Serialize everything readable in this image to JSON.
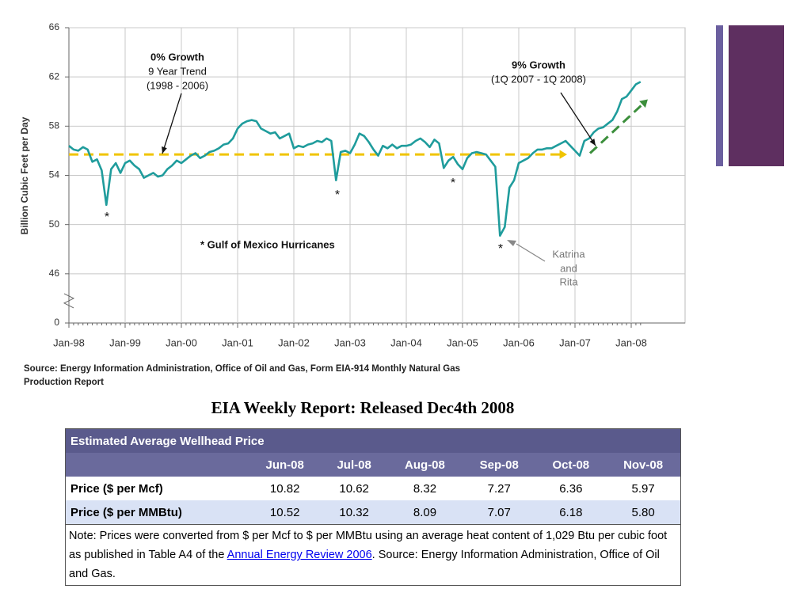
{
  "chart_data": {
    "type": "line",
    "y_label": "Billion Cubic Feet per Day",
    "categories": [
      "Jan-98",
      null,
      null,
      null,
      null,
      null,
      null,
      null,
      null,
      null,
      null,
      null,
      "Jan-99",
      null,
      null,
      null,
      null,
      null,
      null,
      null,
      null,
      null,
      null,
      null,
      "Jan-00",
      null,
      null,
      null,
      null,
      null,
      null,
      null,
      null,
      null,
      null,
      null,
      "Jan-01",
      null,
      null,
      null,
      null,
      null,
      null,
      null,
      null,
      null,
      null,
      null,
      "Jan-02",
      null,
      null,
      null,
      null,
      null,
      null,
      null,
      null,
      null,
      null,
      null,
      "Jan-03",
      null,
      null,
      null,
      null,
      null,
      null,
      null,
      null,
      null,
      null,
      null,
      "Jan-04",
      null,
      null,
      null,
      null,
      null,
      null,
      null,
      null,
      null,
      null,
      null,
      "Jan-05",
      null,
      null,
      null,
      null,
      null,
      null,
      null,
      null,
      null,
      null,
      null,
      "Jan-06",
      null,
      null,
      null,
      null,
      null,
      null,
      null,
      null,
      null,
      null,
      null,
      "Jan-07",
      null,
      null,
      null,
      null,
      null,
      null,
      null,
      null,
      null,
      null,
      null,
      "Jan-08",
      null,
      null
    ],
    "series": [
      {
        "color": "#1f9c9c",
        "values": [
          56.4,
          56.1,
          56.0,
          56.3,
          56.1,
          55.1,
          55.3,
          54.4,
          51.6,
          54.5,
          55.0,
          54.2,
          55.0,
          55.2,
          54.8,
          54.5,
          53.8,
          54.0,
          54.2,
          53.9,
          54.0,
          54.5,
          54.8,
          55.2,
          55.0,
          55.3,
          55.6,
          55.8,
          55.4,
          55.6,
          55.9,
          56.0,
          56.2,
          56.5,
          56.6,
          57.0,
          57.8,
          58.2,
          58.4,
          58.5,
          58.4,
          57.8,
          57.6,
          57.4,
          57.5,
          57.0,
          57.2,
          57.4,
          56.2,
          56.4,
          56.3,
          56.5,
          56.6,
          56.8,
          56.7,
          57.0,
          56.8,
          53.6,
          55.9,
          56.0,
          55.8,
          56.5,
          57.4,
          57.2,
          56.7,
          56.1,
          55.6,
          56.4,
          56.2,
          56.5,
          56.2,
          56.4,
          56.4,
          56.5,
          56.8,
          57.0,
          56.7,
          56.3,
          56.9,
          56.6,
          54.6,
          55.2,
          55.5,
          54.9,
          54.5,
          55.4,
          55.8,
          55.9,
          55.8,
          55.7,
          55.2,
          54.7,
          49.1,
          49.8,
          53.0,
          53.6,
          55.0,
          55.2,
          55.4,
          55.8,
          56.1,
          56.1,
          56.2,
          56.2,
          56.4,
          56.6,
          56.8,
          56.4,
          56.0,
          55.6,
          56.8,
          57.0,
          57.5,
          57.8,
          57.9,
          58.2,
          58.5,
          59.2,
          60.2,
          60.4,
          60.9,
          61.4,
          61.6
        ]
      }
    ],
    "ylim": [
      0,
      66
    ],
    "yticks": [
      0,
      46,
      50,
      54,
      58,
      62,
      66
    ],
    "y_axis_break": true,
    "grid": true,
    "trend_lines": [
      {
        "color": "#f0c400",
        "values": [
          55.7,
          55.7
        ]
      },
      {
        "color": "#3c8f3c",
        "values": [
          55.8,
          60.0
        ]
      }
    ],
    "annotations": [
      "0% Growth",
      "9 Year Trend",
      "(1998 - 2006)",
      "9% Growth",
      "(1Q 2007 - 1Q 2008)",
      "* Gulf of Mexico Hurricanes",
      "*",
      "*",
      "*",
      "*",
      "Katrina",
      "and",
      "Rita"
    ],
    "source": [
      "Source: Energy Information Administration, Office of Oil and Gas, Form EIA-914 Monthly Natural Gas",
      "Production Report"
    ]
  },
  "heading": "EIA Weekly Report: Released Dec4th 2008",
  "table": {
    "title": "Estimated Average Wellhead Price",
    "columns": [
      "Jun-08",
      "Jul-08",
      "Aug-08",
      "Sep-08",
      "Oct-08",
      "Nov-08"
    ],
    "rows": [
      [
        "Price ($ per Mcf)",
        "10.82",
        "10.62",
        "8.32",
        "7.27",
        "6.36",
        "5.97"
      ],
      [
        "Price ($ per MMBtu)",
        "10.52",
        "10.32",
        "8.09",
        "7.07",
        "6.18",
        "5.80"
      ]
    ],
    "note": [
      "Note: Prices were converted from $ per Mcf to $ per MMBtu using an average heat content of 1,029 Btu per cubic foot as published in Table A4 of the ",
      "Annual Energy Review 2006",
      ".  Source:  Energy Information Administration, Office of Oil and Gas."
    ]
  }
}
